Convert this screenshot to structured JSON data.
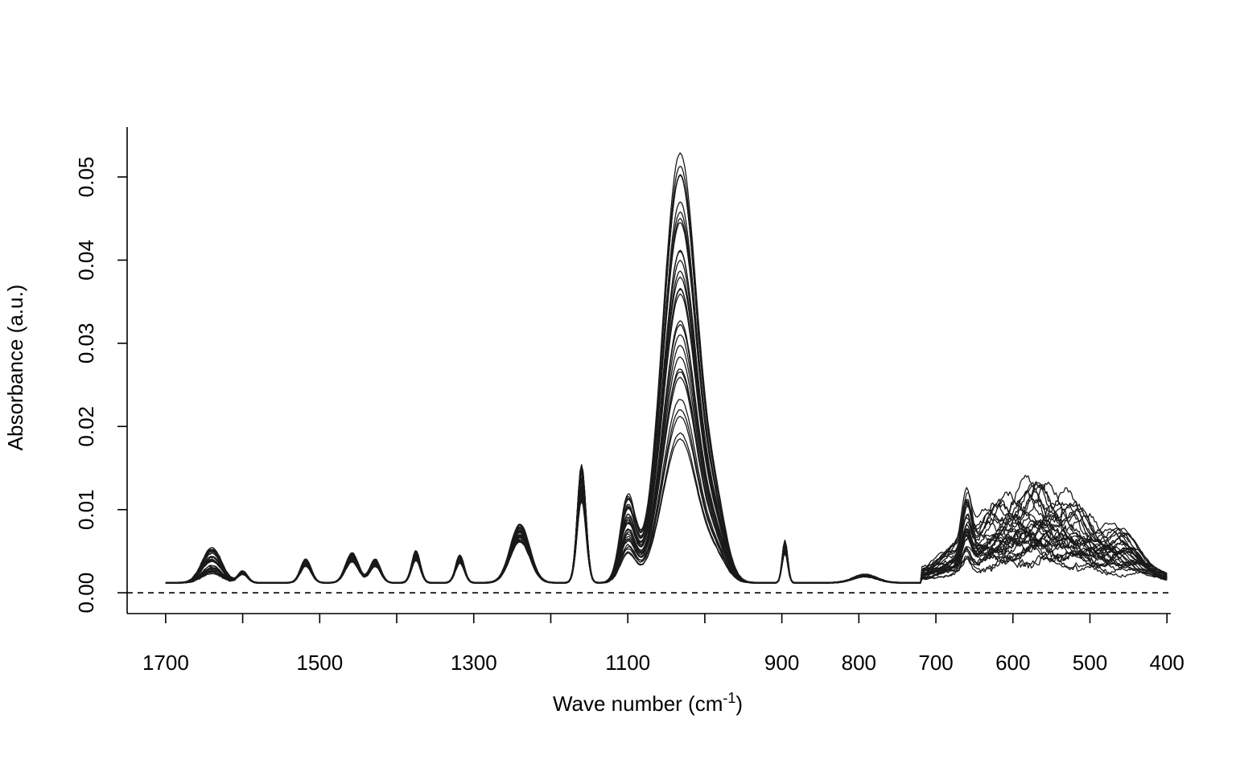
{
  "chart_data": {
    "type": "line",
    "title": "",
    "xlabel": "Wave number (cm",
    "xlabel_sup": "-1",
    "xlabel_close": ")",
    "ylabel": "Absorbance (a.u.)",
    "xlim": [
      1750,
      395
    ],
    "ylim": [
      -0.0025,
      0.056
    ],
    "x_ticks": [
      1700,
      1600,
      1500,
      1400,
      1300,
      1200,
      1100,
      1000,
      900,
      800,
      700,
      600,
      500,
      400
    ],
    "x_tick_labels": [
      "1700",
      "1500",
      "1300",
      "1100",
      "900",
      "800",
      "700",
      "600",
      "500",
      "400"
    ],
    "x_tick_label_values": [
      1700,
      1500,
      1300,
      1100,
      900,
      800,
      700,
      600,
      500,
      400
    ],
    "y_ticks": [
      0.0,
      0.01,
      0.02,
      0.03,
      0.04,
      0.05
    ],
    "y_tick_labels": [
      "0.00",
      "0.01",
      "0.02",
      "0.03",
      "0.04",
      "0.05"
    ],
    "reference_line": {
      "y": 0.0,
      "style": "dashed"
    },
    "grid": false,
    "legend": "none",
    "series_count": 30,
    "base_peaks": [
      {
        "x": 1640,
        "y": 0.0026,
        "w": 18
      },
      {
        "x": 1600,
        "y": 0.0011,
        "w": 9
      },
      {
        "x": 1518,
        "y": 0.0022,
        "w": 10
      },
      {
        "x": 1458,
        "y": 0.0028,
        "w": 12
      },
      {
        "x": 1428,
        "y": 0.0022,
        "w": 10
      },
      {
        "x": 1375,
        "y": 0.003,
        "w": 8
      },
      {
        "x": 1318,
        "y": 0.0026,
        "w": 8
      },
      {
        "x": 1240,
        "y": 0.0055,
        "w": 18
      },
      {
        "x": 1160,
        "y": 0.011,
        "w": 8
      },
      {
        "x": 1100,
        "y": 0.009,
        "w": 14
      },
      {
        "x": 1032,
        "y": 0.042,
        "w": 32
      },
      {
        "x": 985,
        "y": 0.006,
        "w": 20
      },
      {
        "x": 896,
        "y": 0.004,
        "w": 5
      },
      {
        "x": 792,
        "y": 0.0008,
        "w": 22
      }
    ],
    "baseline_value": 0.0012,
    "colors": {
      "lines": "#1a1a1a",
      "axis": "#000000",
      "background": "#ffffff"
    }
  }
}
